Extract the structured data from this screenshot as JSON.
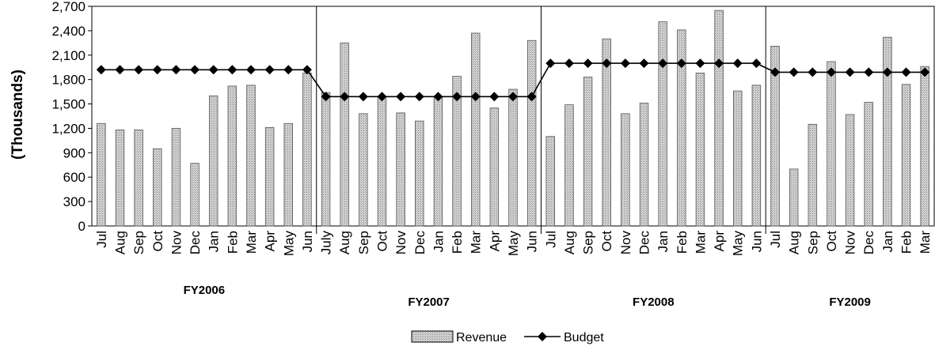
{
  "chart_data": {
    "type": "bar",
    "ylabel": "(Thousands)",
    "ylim": [
      0,
      2700
    ],
    "y_ticks": [
      "0",
      "300",
      "600",
      "900",
      "1,200",
      "1,500",
      "1,800",
      "2,100",
      "2,400",
      "2,700"
    ],
    "y_tick_values": [
      0,
      300,
      600,
      900,
      1200,
      1500,
      1800,
      2100,
      2400,
      2700
    ],
    "grid": false,
    "legend_position": "bottom",
    "categories": [
      "Jul",
      "Aug",
      "Sep",
      "Oct",
      "Nov",
      "Dec",
      "Jan",
      "Feb",
      "Mar",
      "Apr",
      "May",
      "Jun",
      "July",
      "Aug",
      "Sep",
      "Oct",
      "Nov",
      "Dec",
      "Jan",
      "Feb",
      "Mar",
      "Apr",
      "May",
      "Jun",
      "Jul",
      "Aug",
      "Sep",
      "Oct",
      "Nov",
      "Dec",
      "Jan",
      "Feb",
      "Mar",
      "Apr",
      "May",
      "Jun",
      "Jul",
      "Aug",
      "Sep",
      "Oct",
      "Nov",
      "Dec",
      "Jan",
      "Feb",
      "Mar"
    ],
    "groups": [
      {
        "label": "FY2006",
        "start": 0,
        "count": 12
      },
      {
        "label": "FY2007",
        "start": 12,
        "count": 12
      },
      {
        "label": "FY2008",
        "start": 24,
        "count": 12
      },
      {
        "label": "FY2009",
        "start": 36,
        "count": 9
      }
    ],
    "series": [
      {
        "name": "Revenue",
        "kind": "bar",
        "color": "#c8c8c8",
        "values": [
          1260,
          1180,
          1180,
          950,
          1200,
          770,
          1600,
          1720,
          1730,
          1210,
          1260,
          1880,
          1640,
          2250,
          1380,
          1590,
          1390,
          1290,
          1590,
          1840,
          2370,
          1450,
          1680,
          2280,
          1100,
          1490,
          1830,
          2300,
          1380,
          1510,
          2510,
          2410,
          1880,
          2650,
          1660,
          1730,
          2210,
          700,
          1250,
          2020,
          1370,
          1520,
          2320,
          1740,
          1960
        ]
      },
      {
        "name": "Budget",
        "kind": "line",
        "color": "#000000",
        "values": [
          1920,
          1920,
          1920,
          1920,
          1920,
          1920,
          1920,
          1920,
          1920,
          1920,
          1920,
          1920,
          1590,
          1590,
          1590,
          1590,
          1590,
          1590,
          1590,
          1590,
          1590,
          1590,
          1590,
          1590,
          2000,
          2000,
          2000,
          2000,
          2000,
          2000,
          2000,
          2000,
          2000,
          2000,
          2000,
          2000,
          1890,
          1890,
          1890,
          1890,
          1890,
          1890,
          1890,
          1890,
          1890
        ]
      }
    ]
  }
}
